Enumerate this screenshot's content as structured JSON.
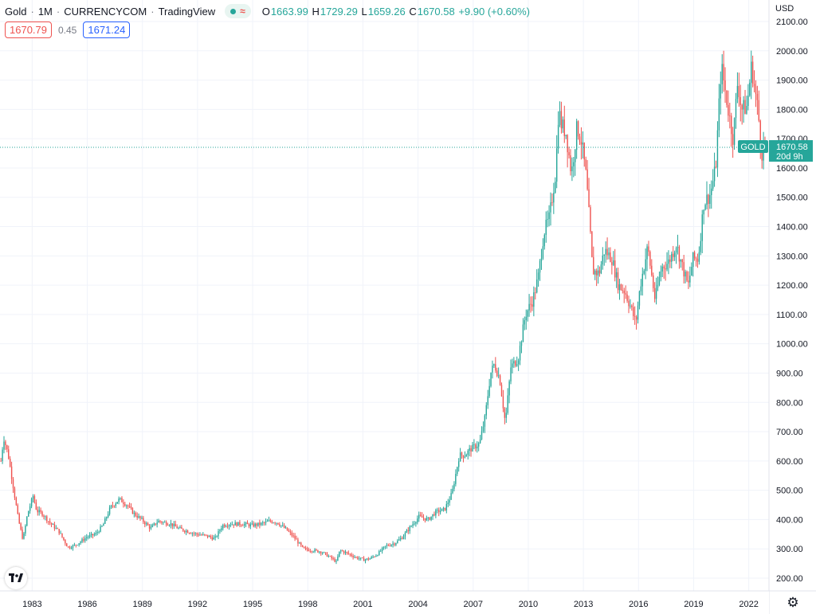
{
  "header": {
    "symbol": "Gold",
    "interval": "1M",
    "exchange": "CURRENCYCOM",
    "platform": "TradingView",
    "separator": "·",
    "status_icon": "market-open-dot-icon",
    "status_wave": "≈",
    "ohlc": {
      "o_label": "O",
      "o_value": "1663.99",
      "h_label": "H",
      "h_value": "1729.29",
      "l_label": "L",
      "l_value": "1659.26",
      "c_label": "C",
      "c_value": "1670.58",
      "change": "+9.90 (+0.60%)"
    }
  },
  "quotes": {
    "bid": "1670.79",
    "spread": "0.45",
    "ask": "1671.24"
  },
  "price_axis": {
    "currency": "USD",
    "ticks": [
      "2100.00",
      "2000.00",
      "1900.00",
      "1800.00",
      "1700.00",
      "1600.00",
      "1500.00",
      "1400.00",
      "1300.00",
      "1200.00",
      "1100.00",
      "1000.00",
      "900.00",
      "800.00",
      "700.00",
      "600.00",
      "500.00",
      "400.00",
      "300.00",
      "200.00"
    ]
  },
  "time_axis": {
    "ticks": [
      "1983",
      "1986",
      "1989",
      "1992",
      "1995",
      "1998",
      "2001",
      "2004",
      "2007",
      "2010",
      "2013",
      "2016",
      "2019",
      "2022"
    ]
  },
  "last_price": {
    "symbol_tag": "GOLD",
    "price": "1670.58",
    "countdown": "20d 9h"
  },
  "colors": {
    "up": "#26a69a",
    "down": "#ef5350",
    "grid": "#f0f3fa",
    "axis_text": "#131722",
    "last_price_bg": "#26a69a"
  },
  "icons": {
    "logo": "tradingview-logo-icon",
    "settings": "gear-icon"
  },
  "chart_data": {
    "type": "candlestick",
    "title": "Gold · 1M · CURRENCYCOM",
    "yunit": "USD",
    "ylim": [
      170,
      2150
    ],
    "xlim": [
      1981.3,
      2023.15
    ],
    "grid": true,
    "last_close": 1670.58,
    "anchors": [
      [
        1981.35,
        600
      ],
      [
        1981.5,
        680
      ],
      [
        1981.75,
        620
      ],
      [
        1982.0,
        520
      ],
      [
        1982.3,
        400
      ],
      [
        1982.55,
        330
      ],
      [
        1982.8,
        420
      ],
      [
        1983.1,
        480
      ],
      [
        1983.3,
        430
      ],
      [
        1983.6,
        420
      ],
      [
        1984.0,
        390
      ],
      [
        1984.5,
        360
      ],
      [
        1985.0,
        305
      ],
      [
        1985.3,
        310
      ],
      [
        1985.7,
        325
      ],
      [
        1986.0,
        340
      ],
      [
        1986.5,
        350
      ],
      [
        1986.9,
        380
      ],
      [
        1987.3,
        440
      ],
      [
        1987.8,
        470
      ],
      [
        1988.2,
        450
      ],
      [
        1988.6,
        420
      ],
      [
        1989.0,
        400
      ],
      [
        1989.5,
        370
      ],
      [
        1989.9,
        395
      ],
      [
        1990.2,
        390
      ],
      [
        1990.6,
        385
      ],
      [
        1991.0,
        370
      ],
      [
        1991.5,
        360
      ],
      [
        1992.0,
        350
      ],
      [
        1992.5,
        345
      ],
      [
        1993.0,
        335
      ],
      [
        1993.4,
        380
      ],
      [
        1993.8,
        385
      ],
      [
        1994.5,
        385
      ],
      [
        1995.0,
        380
      ],
      [
        1995.5,
        385
      ],
      [
        1996.0,
        395
      ],
      [
        1996.4,
        390
      ],
      [
        1996.9,
        365
      ],
      [
        1997.3,
        340
      ],
      [
        1997.8,
        300
      ],
      [
        1998.3,
        295
      ],
      [
        1998.8,
        290
      ],
      [
        1999.3,
        270
      ],
      [
        1999.6,
        256
      ],
      [
        1999.8,
        295
      ],
      [
        2000.2,
        285
      ],
      [
        2000.7,
        270
      ],
      [
        2001.1,
        263
      ],
      [
        2001.4,
        266
      ],
      [
        2001.8,
        280
      ],
      [
        2002.3,
        310
      ],
      [
        2002.8,
        320
      ],
      [
        2003.2,
        340
      ],
      [
        2003.7,
        380
      ],
      [
        2004.1,
        410
      ],
      [
        2004.6,
        400
      ],
      [
        2005.0,
        425
      ],
      [
        2005.5,
        435
      ],
      [
        2005.9,
        490
      ],
      [
        2006.3,
        620
      ],
      [
        2006.6,
        620
      ],
      [
        2006.9,
        640
      ],
      [
        2007.4,
        660
      ],
      [
        2007.7,
        750
      ],
      [
        2008.0,
        900
      ],
      [
        2008.2,
        930
      ],
      [
        2008.5,
        880
      ],
      [
        2008.8,
        730
      ],
      [
        2009.1,
        920
      ],
      [
        2009.5,
        950
      ],
      [
        2009.9,
        1100
      ],
      [
        2010.3,
        1150
      ],
      [
        2010.6,
        1230
      ],
      [
        2010.9,
        1380
      ],
      [
        2011.2,
        1430
      ],
      [
        2011.55,
        1590
      ],
      [
        2011.7,
        1800
      ],
      [
        2011.85,
        1750
      ],
      [
        2012.1,
        1720
      ],
      [
        2012.4,
        1580
      ],
      [
        2012.7,
        1740
      ],
      [
        2012.95,
        1690
      ],
      [
        2013.2,
        1570
      ],
      [
        2013.4,
        1400
      ],
      [
        2013.55,
        1250
      ],
      [
        2013.9,
        1240
      ],
      [
        2014.2,
        1320
      ],
      [
        2014.6,
        1290
      ],
      [
        2014.95,
        1200
      ],
      [
        2015.3,
        1180
      ],
      [
        2015.6,
        1130
      ],
      [
        2015.9,
        1070
      ],
      [
        2016.15,
        1200
      ],
      [
        2016.55,
        1330
      ],
      [
        2016.95,
        1150
      ],
      [
        2017.3,
        1260
      ],
      [
        2017.7,
        1280
      ],
      [
        2018.1,
        1340
      ],
      [
        2018.5,
        1250
      ],
      [
        2018.75,
        1195
      ],
      [
        2019.0,
        1290
      ],
      [
        2019.3,
        1290
      ],
      [
        2019.6,
        1480
      ],
      [
        2019.95,
        1510
      ],
      [
        2020.25,
        1600
      ],
      [
        2020.55,
        1950
      ],
      [
        2020.85,
        1830
      ],
      [
        2021.2,
        1700
      ],
      [
        2021.45,
        1900
      ],
      [
        2021.65,
        1800
      ],
      [
        2021.95,
        1810
      ],
      [
        2022.2,
        1950
      ],
      [
        2022.35,
        1880
      ],
      [
        2022.55,
        1800
      ],
      [
        2022.75,
        1650
      ],
      [
        2022.9,
        1672
      ]
    ]
  }
}
